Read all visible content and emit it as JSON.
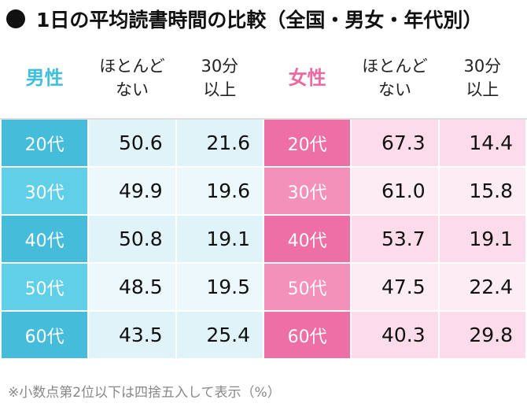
{
  "title": "1日の平均読書時間の比較（全国・男女・年代別）",
  "table": {
    "header": [
      {
        "lines": [
          "男性"
        ]
      },
      {
        "lines": [
          "ほとんど",
          "ない"
        ]
      },
      {
        "lines": [
          "30分",
          "以上"
        ]
      },
      {
        "lines": [
          "女性"
        ]
      },
      {
        "lines": [
          "ほとんど",
          "ない"
        ]
      },
      {
        "lines": [
          "30分",
          "以上"
        ]
      }
    ],
    "rows": [
      [
        "20代",
        "50.6",
        "21.6",
        "20代",
        "67.3",
        "14.4"
      ],
      [
        "30代",
        "49.9",
        "19.6",
        "30代",
        "61.0",
        "15.8"
      ],
      [
        "40代",
        "50.8",
        "19.1",
        "40代",
        "53.7",
        "19.1"
      ],
      [
        "50代",
        "48.5",
        "19.5",
        "50代",
        "47.5",
        "22.4"
      ],
      [
        "60代",
        "43.5",
        "25.4",
        "60代",
        "40.3",
        "29.8"
      ]
    ]
  },
  "footnote": "※小数点第2位以下は四捨五入して表示（%）"
}
